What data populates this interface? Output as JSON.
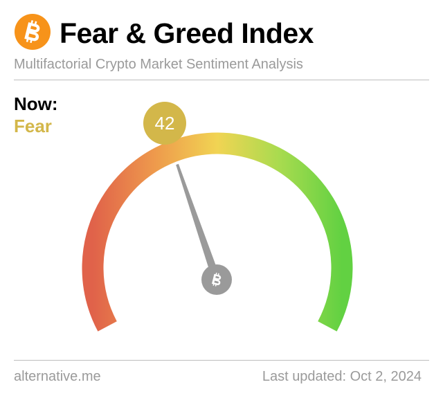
{
  "header": {
    "logo_icon": "bitcoin-icon",
    "title": "Fear & Greed Index",
    "subtitle": "Multifactorial Crypto Market Sentiment Analysis"
  },
  "current": {
    "now_label": "Now:",
    "classification": "Fear",
    "value": "42",
    "value_number": 42,
    "color": "#d3b74a"
  },
  "gauge": {
    "min": 0,
    "max": 100,
    "needle_icon": "bitcoin-icon",
    "colors": {
      "fear_end": "#e0624a",
      "low": "#ee9a4c",
      "mid": "#f1d453",
      "high": "#a8db4f",
      "greed_end": "#62d142",
      "needle": "#9a9a9a"
    }
  },
  "footer": {
    "source": "alternative.me",
    "updated": "Last updated: Oct 2, 2024"
  }
}
